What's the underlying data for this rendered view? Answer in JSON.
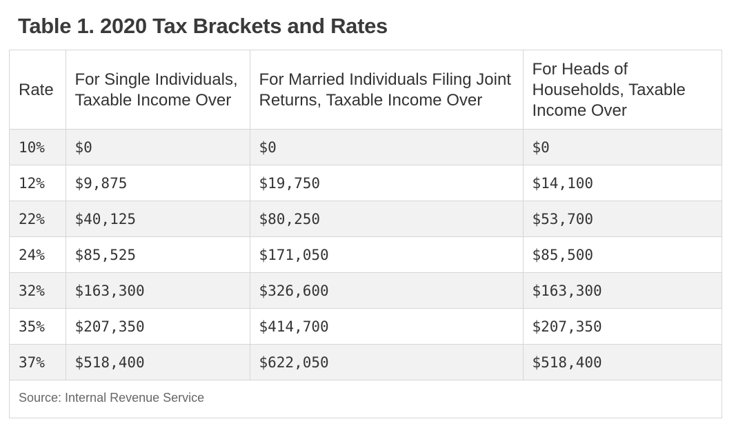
{
  "title": "Table 1. 2020 Tax Brackets and Rates",
  "table": {
    "headers": [
      "Rate",
      "For Single Individuals, Taxable Income Over",
      "For Married Individuals Filing Joint Returns, Taxable Income Over",
      "For Heads of Households, Taxable Income Over"
    ],
    "rows": [
      [
        "10%",
        "$0",
        "$0",
        "$0"
      ],
      [
        "12%",
        "$9,875",
        "$19,750",
        "$14,100"
      ],
      [
        "22%",
        "$40,125",
        "$80,250",
        "$53,700"
      ],
      [
        "24%",
        "$85,525",
        "$171,050",
        "$85,500"
      ],
      [
        "32%",
        "$163,300",
        "$326,600",
        "$163,300"
      ],
      [
        "35%",
        "$207,350",
        "$414,700",
        "$207,350"
      ],
      [
        "37%",
        "$518,400",
        "$622,050",
        "$518,400"
      ]
    ]
  },
  "source": "Source: Internal Revenue Service",
  "colors": {
    "stripe": "#f2f2f2",
    "border": "#d6d6d6",
    "title": "#3a3a3a",
    "source": "#666666"
  }
}
